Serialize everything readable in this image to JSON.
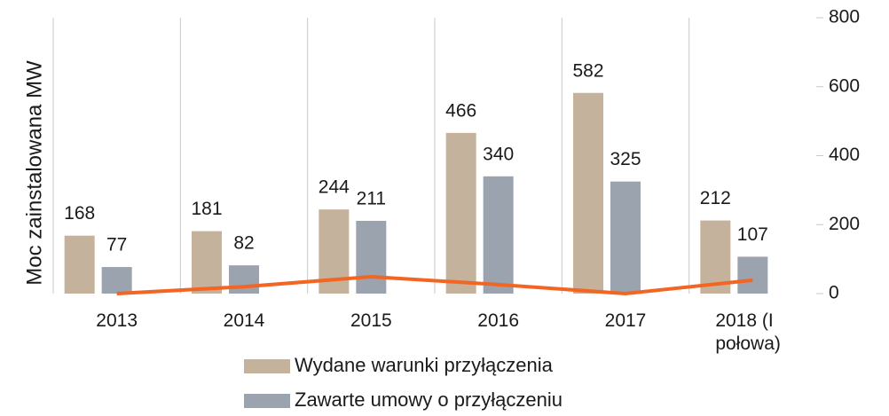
{
  "chart_data": {
    "type": "bar",
    "y_axis_label": "Moc zainstalowana MW",
    "categories": [
      "2013",
      "2014",
      "2015",
      "2016",
      "2017",
      "2018 (I połowa)"
    ],
    "series": [
      {
        "name": "Wydane warunki przyłączenia",
        "color": "#c4b29c",
        "values": [
          168,
          181,
          244,
          466,
          582,
          212
        ]
      },
      {
        "name": "Zawarte umowy o przyłączeniu",
        "color": "#9aa3ae",
        "values": [
          77,
          82,
          211,
          340,
          325,
          107
        ]
      },
      {
        "type": "line",
        "color": "#f26522",
        "values": [
          0,
          20,
          49,
          26,
          0,
          39
        ]
      }
    ],
    "ylim": [
      0,
      800
    ],
    "yticks": [
      0,
      200,
      400,
      600,
      800
    ]
  }
}
